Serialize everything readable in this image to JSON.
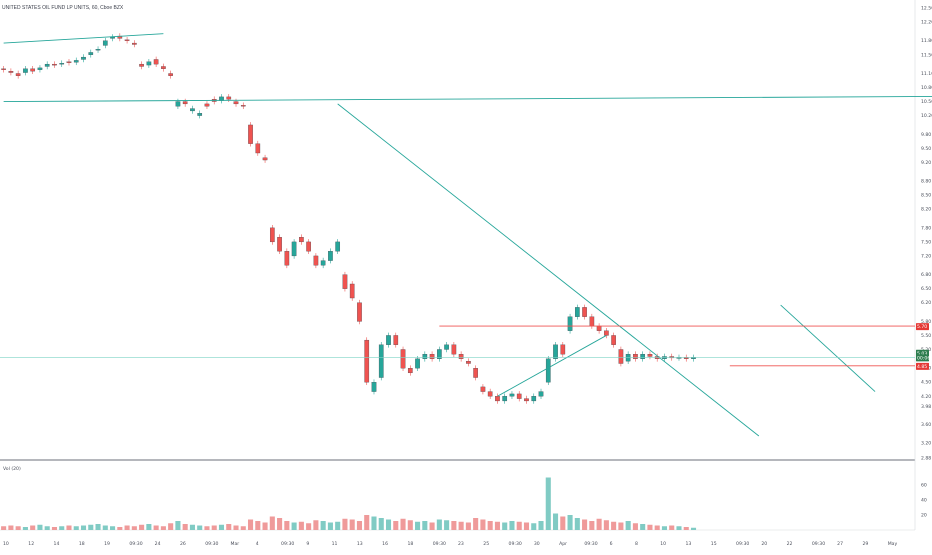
{
  "header": {
    "title": "UNITED STATES OIL FUND LP UNITS, 60, Cboe BZX"
  },
  "volume_pane": {
    "label": "Vol (20)",
    "ticks": [
      "60",
      "40",
      "20"
    ]
  },
  "price_axis": {
    "ticks": [
      "12.50",
      "12.20",
      "11.80",
      "11.50",
      "11.10",
      "10.80",
      "10.50",
      "10.20",
      "9.80",
      "9.50",
      "9.20",
      "8.80",
      "8.50",
      "8.20",
      "7.80",
      "7.50",
      "7.20",
      "6.80",
      "6.50",
      "6.20",
      "5.80",
      "5.50",
      "5.20",
      "4.80",
      "4.50",
      "4.20",
      "3.98",
      "3.60",
      "3.20",
      "2.88"
    ]
  },
  "price_badges": [
    {
      "value": "5.70",
      "color": "#e53935"
    },
    {
      "value": "5.03",
      "color": "#2e7d4f"
    },
    {
      "value": "00:06",
      "color": "#2e7d4f"
    },
    {
      "value": "4.85",
      "color": "#e53935"
    }
  ],
  "time_axis": {
    "ticks": [
      "10",
      "12",
      "14",
      "18",
      "19",
      "09:30",
      "24",
      "26",
      "09:30",
      "Mar",
      "4",
      "09:30",
      "9",
      "11",
      "13",
      "16",
      "18",
      "09:30",
      "23",
      "25",
      "09:30",
      "30",
      "Apr",
      "09:30",
      "6",
      "8",
      "10",
      "13",
      "15",
      "09:30",
      "20",
      "22",
      "09:30",
      "27",
      "29",
      "May"
    ]
  },
  "colors": {
    "up": "#26a69a",
    "down": "#ef5350",
    "candle_body": "#3c3f48",
    "trendline": "#26a69a",
    "hline": "#ef5350",
    "last_price_line": "#7fd3c6"
  },
  "chart_data": {
    "type": "candlestick",
    "title": "UNITED STATES OIL FUND LP UNITS, 60, Cboe BZX",
    "y_range": [
      2.88,
      12.5
    ],
    "volume_range": [
      0,
      80
    ],
    "grid": false,
    "n_bars": 96,
    "bars": [
      [
        0,
        11.2,
        11.18
      ],
      [
        1,
        11.15,
        11.12
      ],
      [
        2,
        11.1,
        11.05
      ],
      [
        3,
        11.12,
        11.2
      ],
      [
        4,
        11.2,
        11.15
      ],
      [
        5,
        11.18,
        11.22
      ],
      [
        6,
        11.25,
        11.3
      ],
      [
        7,
        11.3,
        11.28
      ],
      [
        8,
        11.3,
        11.32
      ],
      [
        9,
        11.35,
        11.33
      ],
      [
        10,
        11.34,
        11.38
      ],
      [
        11,
        11.4,
        11.45
      ],
      [
        12,
        11.5,
        11.55
      ],
      [
        13,
        11.6,
        11.62
      ],
      [
        14,
        11.7,
        11.8
      ],
      [
        15,
        11.85,
        11.88
      ],
      [
        16,
        11.9,
        11.85
      ],
      [
        17,
        11.82,
        11.8
      ],
      [
        18,
        11.75,
        11.72
      ],
      [
        19,
        11.3,
        11.25
      ],
      [
        20,
        11.28,
        11.35
      ],
      [
        21,
        11.4,
        11.3
      ],
      [
        22,
        11.25,
        11.2
      ],
      [
        23,
        11.1,
        11.05
      ],
      [
        24,
        10.4,
        10.5
      ],
      [
        25,
        10.5,
        10.45
      ],
      [
        26,
        10.3,
        10.35
      ],
      [
        27,
        10.2,
        10.25
      ],
      [
        28,
        10.45,
        10.4
      ],
      [
        29,
        10.55,
        10.5
      ],
      [
        30,
        10.52,
        10.6
      ],
      [
        31,
        10.6,
        10.55
      ],
      [
        32,
        10.5,
        10.45
      ],
      [
        33,
        10.42,
        10.4
      ],
      [
        34,
        10.0,
        9.6
      ],
      [
        35,
        9.6,
        9.4
      ],
      [
        36,
        9.3,
        9.25
      ],
      [
        37,
        7.8,
        7.5
      ],
      [
        38,
        7.6,
        7.3
      ],
      [
        39,
        7.3,
        7.0
      ],
      [
        40,
        7.2,
        7.5
      ],
      [
        41,
        7.6,
        7.5
      ],
      [
        42,
        7.5,
        7.3
      ],
      [
        43,
        7.2,
        7.0
      ],
      [
        44,
        7.0,
        7.1
      ],
      [
        45,
        7.1,
        7.3
      ],
      [
        46,
        7.3,
        7.5
      ],
      [
        47,
        6.8,
        6.5
      ],
      [
        48,
        6.6,
        6.3
      ],
      [
        49,
        6.2,
        5.8
      ],
      [
        50,
        5.4,
        4.5
      ],
      [
        51,
        4.3,
        4.5
      ],
      [
        52,
        4.6,
        5.3
      ],
      [
        53,
        5.3,
        5.5
      ],
      [
        54,
        5.5,
        5.3
      ],
      [
        55,
        5.2,
        4.8
      ],
      [
        56,
        4.8,
        4.7
      ],
      [
        57,
        4.8,
        5.0
      ],
      [
        58,
        5.0,
        5.1
      ],
      [
        59,
        5.1,
        5.0
      ],
      [
        60,
        5.0,
        5.2
      ],
      [
        61,
        5.2,
        5.3
      ],
      [
        62,
        5.3,
        5.1
      ],
      [
        63,
        5.1,
        5.0
      ],
      [
        64,
        4.95,
        4.9
      ],
      [
        65,
        4.8,
        4.6
      ],
      [
        66,
        4.4,
        4.3
      ],
      [
        67,
        4.3,
        4.2
      ],
      [
        68,
        4.2,
        4.1
      ],
      [
        69,
        4.1,
        4.2
      ],
      [
        70,
        4.2,
        4.25
      ],
      [
        71,
        4.25,
        4.15
      ],
      [
        72,
        4.15,
        4.1
      ],
      [
        73,
        4.1,
        4.2
      ],
      [
        74,
        4.2,
        4.3
      ],
      [
        75,
        4.5,
        5.0
      ],
      [
        76,
        5.0,
        5.3
      ],
      [
        77,
        5.3,
        5.1
      ],
      [
        78,
        5.6,
        5.9
      ],
      [
        79,
        5.9,
        6.1
      ],
      [
        80,
        6.1,
        5.9
      ],
      [
        81,
        5.9,
        5.7
      ],
      [
        82,
        5.7,
        5.6
      ],
      [
        83,
        5.6,
        5.5
      ],
      [
        84,
        5.5,
        5.3
      ],
      [
        85,
        5.2,
        4.9
      ],
      [
        86,
        4.95,
        5.1
      ],
      [
        87,
        5.1,
        5.0
      ],
      [
        88,
        5.0,
        5.1
      ],
      [
        89,
        5.1,
        5.05
      ],
      [
        90,
        5.05,
        5.0
      ],
      [
        91,
        5.0,
        5.05
      ],
      [
        92,
        5.05,
        5.02
      ],
      [
        93,
        5.02,
        5.03
      ],
      [
        94,
        5.03,
        5.0
      ],
      [
        95,
        5.0,
        5.03
      ]
    ],
    "volumes": [
      5,
      6,
      5,
      4,
      6,
      7,
      5,
      4,
      5,
      6,
      5,
      6,
      7,
      8,
      6,
      5,
      4,
      6,
      5,
      7,
      8,
      6,
      5,
      9,
      12,
      8,
      7,
      6,
      5,
      6,
      7,
      8,
      6,
      5,
      14,
      12,
      10,
      18,
      16,
      12,
      10,
      11,
      9,
      13,
      12,
      10,
      11,
      15,
      14,
      12,
      20,
      18,
      16,
      14,
      12,
      15,
      13,
      11,
      12,
      10,
      14,
      13,
      12,
      11,
      10,
      16,
      14,
      12,
      11,
      10,
      12,
      11,
      10,
      9,
      12,
      70,
      22,
      18,
      20,
      16,
      14,
      12,
      15,
      13,
      11,
      10,
      12,
      9,
      8,
      7,
      6,
      5,
      6,
      5,
      4,
      3
    ],
    "horizontal_levels": [
      5.7,
      4.85
    ],
    "last_price": 5.03
  }
}
